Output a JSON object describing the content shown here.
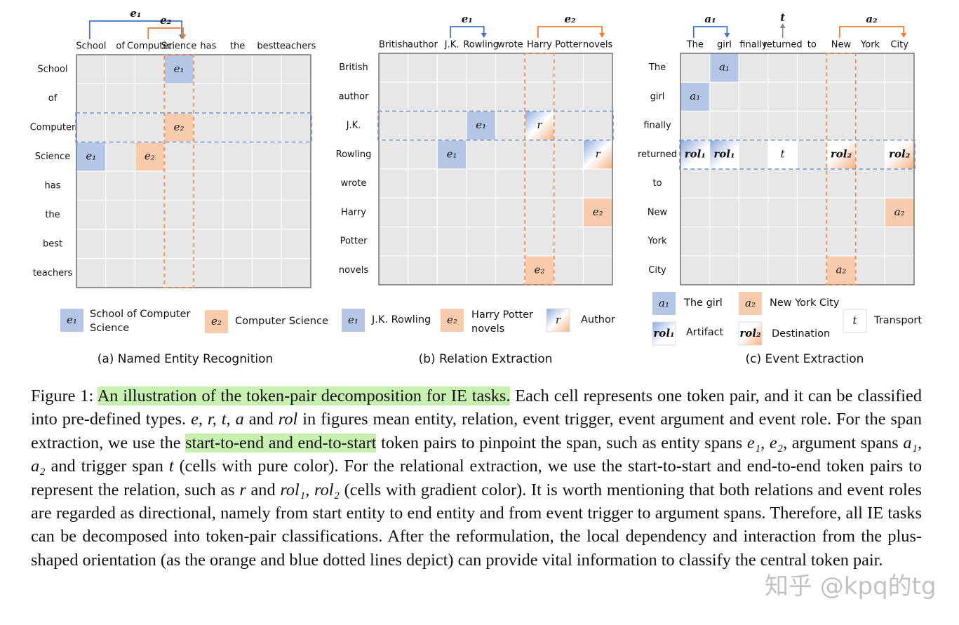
{
  "panels": [
    {
      "tokens": [
        "School",
        "of",
        "Computer",
        "Science",
        "has",
        "the",
        "best",
        "teachers"
      ],
      "highlight_row": 2,
      "highlight_col": 3,
      "arrows": [
        {
          "label": "e₁",
          "from": 0,
          "to": 3,
          "color": "blue"
        },
        {
          "label": "e₂",
          "from": 2,
          "to": 3,
          "color": "orange"
        }
      ],
      "cells": [
        {
          "row": 0,
          "col": 3,
          "label": "e₁",
          "fill": "blue"
        },
        {
          "row": 2,
          "col": 3,
          "label": "e₂",
          "fill": "orange"
        },
        {
          "row": 3,
          "col": 0,
          "label": "e₁",
          "fill": "blue"
        },
        {
          "row": 3,
          "col": 2,
          "label": "e₂",
          "fill": "orange"
        }
      ],
      "legend": [
        {
          "label": "e₁",
          "fill": "blue",
          "text": [
            "School of Computer",
            "Science"
          ]
        },
        {
          "label": "e₂",
          "fill": "orange",
          "text": [
            "Computer Science"
          ]
        }
      ],
      "caption": "(a) Named Entity Recognition"
    },
    {
      "tokens": [
        "British",
        "author",
        "J.K.",
        "Rowling",
        "wrote",
        "Harry",
        "Potter",
        "novels"
      ],
      "highlight_row": 2,
      "highlight_col": 5,
      "arrows": [
        {
          "label": "e₁",
          "from": 2,
          "to": 3,
          "color": "blue"
        },
        {
          "label": "e₂",
          "from": 5,
          "to": 7,
          "color": "orange"
        }
      ],
      "cells": [
        {
          "row": 2,
          "col": 3,
          "label": "e₁",
          "fill": "blue"
        },
        {
          "row": 2,
          "col": 5,
          "label": "r",
          "fill": "gradient"
        },
        {
          "row": 3,
          "col": 2,
          "label": "e₁",
          "fill": "blue"
        },
        {
          "row": 3,
          "col": 7,
          "label": "r",
          "fill": "gradient"
        },
        {
          "row": 5,
          "col": 7,
          "label": "e₂",
          "fill": "orange"
        },
        {
          "row": 7,
          "col": 5,
          "label": "e₂",
          "fill": "orange"
        }
      ],
      "legend": [
        {
          "label": "e₁",
          "fill": "blue",
          "text": [
            "J.K. Rowling"
          ]
        },
        {
          "label": "e₂",
          "fill": "orange",
          "text": [
            "Harry Potter",
            "novels"
          ]
        },
        {
          "label": "r",
          "fill": "gradient",
          "text": [
            "Author"
          ]
        }
      ],
      "caption": "(b) Relation Extraction"
    },
    {
      "tokens": [
        "The",
        "girl",
        "finally",
        "returned",
        "to",
        "New",
        "York",
        "City"
      ],
      "highlight_row": 3,
      "highlight_col": 5,
      "arrows": [
        {
          "label": "a₁",
          "from": 0,
          "to": 1,
          "color": "blue"
        },
        {
          "label": "t",
          "from": 3,
          "to": 3,
          "color": "gray"
        },
        {
          "label": "a₂",
          "from": 5,
          "to": 7,
          "color": "orange"
        }
      ],
      "cells": [
        {
          "row": 0,
          "col": 1,
          "label": "a₁",
          "fill": "blue"
        },
        {
          "row": 1,
          "col": 0,
          "label": "a₁",
          "fill": "blue"
        },
        {
          "row": 3,
          "col": 0,
          "label": "rol₁",
          "fill": "gradient-blue"
        },
        {
          "row": 3,
          "col": 1,
          "label": "rol₁",
          "fill": "gradient-blue"
        },
        {
          "row": 3,
          "col": 3,
          "label": "t",
          "fill": "white"
        },
        {
          "row": 3,
          "col": 5,
          "label": "rol₂",
          "fill": "gradient-orange"
        },
        {
          "row": 3,
          "col": 7,
          "label": "rol₂",
          "fill": "gradient-orange"
        },
        {
          "row": 5,
          "col": 7,
          "label": "a₂",
          "fill": "orange"
        },
        {
          "row": 7,
          "col": 5,
          "label": "a₂",
          "fill": "orange"
        }
      ],
      "legend": [
        {
          "label": "a₁",
          "fill": "blue",
          "text": [
            "The girl"
          ]
        },
        {
          "label": "a₂",
          "fill": "orange",
          "text": [
            "New York City"
          ]
        },
        {
          "label": "rol₁",
          "fill": "gradient-blue",
          "text": [
            "Artifact"
          ]
        },
        {
          "label": "rol₂",
          "fill": "gradient-orange",
          "text": [
            "Destination"
          ]
        },
        {
          "label": "t",
          "fill": "white",
          "text": [
            "Transport"
          ]
        }
      ],
      "caption": "(c) Event Extraction"
    }
  ],
  "figure_caption": [
    {
      "text": "Figure 1: ",
      "style": "plain"
    },
    {
      "text": "An illustration of the token-pair decomposition for IE tasks.",
      "style": "highlight"
    },
    {
      "text": " Each cell represents one token pair, and it can be classified into pre-defined types. ",
      "style": "plain"
    },
    {
      "text": "e, r, t, a",
      "style": "math"
    },
    {
      "text": " and ",
      "style": "plain"
    },
    {
      "text": "rol",
      "style": "math"
    },
    {
      "text": " in figures mean entity, relation, event trigger, event argument and event role. For the span extraction, we use the ",
      "style": "plain"
    },
    {
      "text": "start-to-end and end-to-start",
      "style": "highlight"
    },
    {
      "text": " token pairs to pinpoint the span, such as entity spans ",
      "style": "plain"
    },
    {
      "text": "e₁, e₂",
      "style": "math"
    },
    {
      "text": ", argument spans ",
      "style": "plain"
    },
    {
      "text": "a₁, a₂",
      "style": "math"
    },
    {
      "text": " and trigger span ",
      "style": "plain"
    },
    {
      "text": "t",
      "style": "math"
    },
    {
      "text": " (cells with pure color). For the relational extraction, we use the start-to-start and end-to-end token pairs to represent the relation, such as ",
      "style": "plain"
    },
    {
      "text": "r",
      "style": "math"
    },
    {
      "text": " and ",
      "style": "plain"
    },
    {
      "text": "rol₁, rol₂",
      "style": "math"
    },
    {
      "text": " (cells with gradient color). It is worth mentioning that both relations and event roles are regarded as directional, namely from start entity to end entity and from event trigger to argument spans. Therefore, all IE tasks can be decomposed into token-pair classifications. After the reformulation, the local dependency and interaction from the plus-shaped orientation (as the orange and blue dotted lines depict) can provide vital information to classify the central token pair.",
      "style": "plain"
    }
  ],
  "watermark": "知乎 @kpq的tg"
}
